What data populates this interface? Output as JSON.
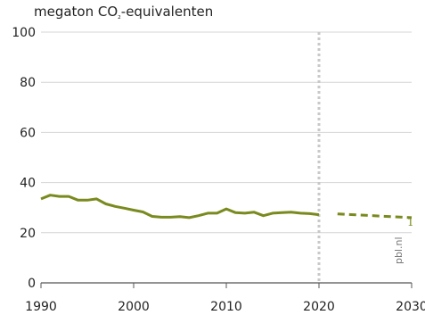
{
  "chart_data": {
    "type": "line",
    "title": "",
    "ylabel": "megaton CO₂-equivalenten",
    "ylabel_parts": {
      "before": "megaton CO",
      "sub": "₂",
      "after": "-equivalenten"
    },
    "xlabel": "",
    "xlim": [
      1990,
      2030
    ],
    "ylim": [
      0,
      100
    ],
    "x_ticks": [
      1990,
      2000,
      2010,
      2020,
      2030
    ],
    "x_tick_labels": [
      "1990",
      "2000",
      "2010",
      "2020",
      "2030"
    ],
    "y_ticks": [
      0,
      20,
      40,
      60,
      80,
      100
    ],
    "y_tick_labels": [
      "0",
      "20",
      "40",
      "60",
      "80",
      "100"
    ],
    "grid": "horizontal",
    "vertical_marker": {
      "x": 2020,
      "style": "dotted"
    },
    "series": [
      {
        "style": "solid",
        "color": "#7a8a1e",
        "points": [
          [
            1990,
            33.5
          ],
          [
            1991,
            35.0
          ],
          [
            1992,
            34.5
          ],
          [
            1993,
            34.5
          ],
          [
            1994,
            33.0
          ],
          [
            1995,
            33.0
          ],
          [
            1996,
            33.5
          ],
          [
            1997,
            31.5
          ],
          [
            1998,
            30.5
          ],
          [
            1999,
            29.8
          ],
          [
            2000,
            29.0
          ],
          [
            2001,
            28.3
          ],
          [
            2002,
            26.5
          ],
          [
            2003,
            26.2
          ],
          [
            2004,
            26.2
          ],
          [
            2005,
            26.4
          ],
          [
            2006,
            26.0
          ],
          [
            2007,
            26.8
          ],
          [
            2008,
            27.8
          ],
          [
            2009,
            27.8
          ],
          [
            2010,
            29.5
          ],
          [
            2011,
            28.0
          ],
          [
            2012,
            27.8
          ],
          [
            2013,
            28.2
          ],
          [
            2014,
            26.8
          ],
          [
            2015,
            27.8
          ],
          [
            2016,
            28.0
          ],
          [
            2017,
            28.2
          ],
          [
            2018,
            27.8
          ],
          [
            2019,
            27.6
          ],
          [
            2020,
            27.2
          ]
        ]
      },
      {
        "style": "dashed",
        "color": "#7a8a1e",
        "points": [
          [
            2022,
            27.5
          ],
          [
            2030,
            26.0
          ]
        ]
      }
    ],
    "annotations": [
      {
        "text": "1",
        "x": 2030,
        "y": 24.5
      }
    ]
  },
  "credit": "pbl.nl"
}
